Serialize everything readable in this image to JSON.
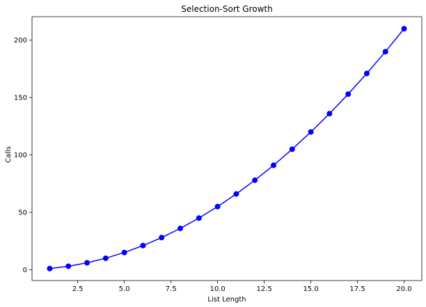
{
  "chart_data": {
    "type": "line",
    "title": "Selection-Sort Growth",
    "xlabel": "List Length",
    "ylabel": "Calls",
    "x": [
      1,
      2,
      3,
      4,
      5,
      6,
      7,
      8,
      9,
      10,
      11,
      12,
      13,
      14,
      15,
      16,
      17,
      18,
      19,
      20
    ],
    "series": [
      {
        "values": [
          1,
          3,
          6,
          10,
          15,
          21,
          28,
          36,
          45,
          55,
          66,
          78,
          91,
          105,
          120,
          136,
          153,
          171,
          190,
          210
        ],
        "color": "#0000ff",
        "marker": "circle"
      }
    ],
    "xlim": [
      0.05,
      20.95
    ],
    "ylim": [
      -9.45,
      220.45
    ],
    "xticks": [
      2.5,
      5.0,
      7.5,
      10.0,
      12.5,
      15.0,
      17.5,
      20.0
    ],
    "xtick_labels": [
      "2.5",
      "5.0",
      "7.5",
      "10.0",
      "12.5",
      "15.0",
      "17.5",
      "20.0"
    ],
    "yticks": [
      0,
      50,
      100,
      150,
      200
    ],
    "ytick_labels": [
      "0",
      "50",
      "100",
      "150",
      "200"
    ],
    "grid": false,
    "legend": false
  }
}
